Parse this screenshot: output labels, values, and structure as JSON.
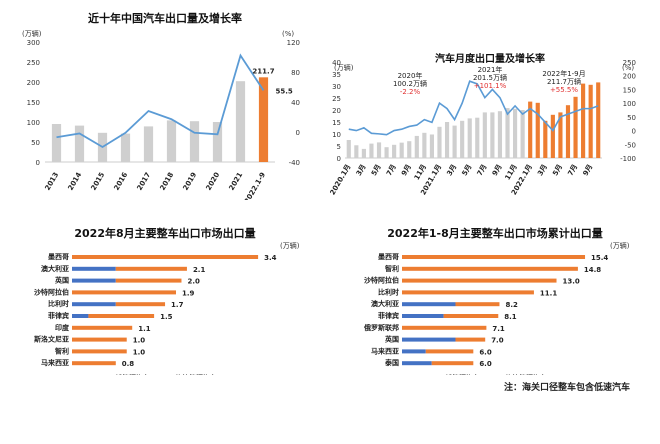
{
  "charts": [
    {
      "type": "bar",
      "title": "近十年中国汽车出口量及增长率",
      "left_unit": "(万辆)",
      "right_unit": "(%)",
      "categories": [
        "2013",
        "2014",
        "2015",
        "2016",
        "2017",
        "2018",
        "2019",
        "2020",
        "2021",
        "2022.1-9"
      ],
      "values": [
        95,
        91,
        73,
        71,
        89,
        104,
        102,
        100,
        202,
        211.7
      ],
      "growth": [
        -7,
        -2,
        -20,
        -1,
        28,
        17,
        -1,
        -3,
        102,
        55.5
      ],
      "labels": {
        "last_value": "211.7",
        "last_growth": "55.5"
      },
      "left_ticks": [
        0,
        50,
        100,
        150,
        200,
        250,
        300
      ],
      "right_ticks": [
        -40,
        0,
        40,
        80,
        120
      ]
    },
    {
      "type": "bar",
      "title": "汽车月度出口量及增长率",
      "left_unit": "(万辆)",
      "right_unit": "(%)",
      "categories": [
        "2020.1月",
        "3月",
        "5月",
        "7月",
        "9月",
        "11月",
        "2021.1月",
        "3月",
        "5月",
        "7月",
        "9月",
        "11月",
        "2022.1月",
        "3月",
        "5月",
        "7月",
        "9月"
      ],
      "values": [
        7.5,
        5.3,
        3.8,
        6,
        6.5,
        4.5,
        5.5,
        6.4,
        7,
        9.2,
        10.5,
        9.8,
        13,
        15,
        13.5,
        15.5,
        16.5,
        16.8,
        19,
        19,
        19.5,
        20.8,
        20.5,
        20,
        23.5,
        23,
        15.5,
        18,
        19,
        22,
        25.5,
        31,
        30.5,
        31.5
      ],
      "growth": [
        5,
        0,
        10,
        -10,
        -12,
        -15,
        0,
        5,
        15,
        20,
        40,
        30,
        100,
        80,
        40,
        100,
        180,
        170,
        120,
        150,
        120,
        60,
        90,
        60,
        80,
        60,
        30,
        0,
        50,
        60,
        70,
        80,
        80,
        90
      ],
      "annotations": [
        {
          "lines": [
            "2020年",
            "100.2万辆",
            "-2.2%"
          ]
        },
        {
          "lines": [
            "2021年",
            "201.5万辆",
            "+101.1%"
          ]
        },
        {
          "lines": [
            "2022年1-9月",
            "211.7万辆",
            "+55.5%"
          ]
        }
      ],
      "left_ticks": [
        0,
        5,
        10,
        15,
        20,
        25,
        30,
        35,
        40
      ],
      "right_ticks": [
        -100,
        -50,
        0,
        50,
        100,
        150,
        200,
        250
      ]
    },
    {
      "type": "bar",
      "title": "2022年8月主要整车出口市场出口量",
      "unit": "(万辆)",
      "categories": [
        "墨西哥",
        "澳大利亚",
        "英国",
        "沙特阿拉伯",
        "比利时",
        "菲律宾",
        "印度",
        "斯洛文尼亚",
        "智利",
        "马来西亚"
      ],
      "ev": [
        0,
        0.8,
        0.8,
        0,
        0.8,
        0.3,
        0,
        0,
        0,
        0
      ],
      "ice": [
        3.4,
        1.3,
        1.2,
        1.9,
        0.9,
        1.2,
        1.1,
        1.0,
        1.0,
        0.8
      ],
      "totals": [
        "3.4",
        "2.1",
        "2.0",
        "1.9",
        "1.7",
        "1.5",
        "1.1",
        "1.0",
        "1.0",
        "0.8"
      ],
      "legend": [
        "新能源汽车",
        "传统能源汽车"
      ]
    },
    {
      "type": "bar",
      "title": "2022年1-8月主要整车出口市场累计出口量",
      "unit": "(万辆)",
      "categories": [
        "墨西哥",
        "智利",
        "沙特阿拉伯",
        "比利时",
        "澳大利亚",
        "菲律宾",
        "俄罗斯联邦",
        "英国",
        "马来西亚",
        "泰国"
      ],
      "ev": [
        0,
        0,
        0,
        0,
        4.5,
        3.5,
        0,
        4.5,
        2.0,
        2.5
      ],
      "ice": [
        15.4,
        14.8,
        13.0,
        11.1,
        3.7,
        4.6,
        7.1,
        2.5,
        4.0,
        3.5
      ],
      "totals": [
        "15.4",
        "14.8",
        "13.0",
        "11.1",
        "8.2",
        "8.1",
        "7.1",
        "7.0",
        "6.0",
        "6.0"
      ],
      "legend": [
        "新能源汽车",
        "传统能源汽车"
      ]
    }
  ],
  "note": "注：海关口径整车包含低速汽车",
  "colors": {
    "gray": "#cfcfcf",
    "orange": "#ed7d31",
    "blue": "#4472c4",
    "line": "#5b9bd5"
  }
}
